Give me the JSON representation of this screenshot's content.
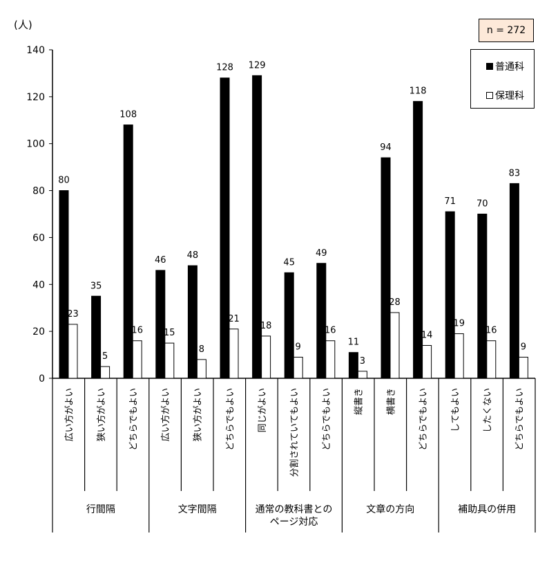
{
  "unit_label": "(人)",
  "n_note": "n = 272",
  "colors": {
    "普通科": "#000000",
    "保理科": "#ffffff"
  },
  "legend": [
    "普通科",
    "保理科"
  ],
  "chart_data": {
    "type": "bar",
    "ylim": [
      0,
      140
    ],
    "yticks": [
      0,
      20,
      40,
      60,
      80,
      100,
      120,
      140
    ],
    "categories": [
      "広い方がよい",
      "狭い方がよい",
      "どちらでもよい",
      "広い方がよい",
      "狭い方がよい",
      "どちらでもよい",
      "同じがよい",
      "分割されていてもよい",
      "どちらでもよい",
      "縦書き",
      "横書き",
      "どちらでもよい",
      "してもよい",
      "したくない",
      "どちらでもよい"
    ],
    "groups": [
      {
        "label": "行間隔",
        "count": 3
      },
      {
        "label": "文字間隔",
        "count": 3
      },
      {
        "label": "通常の教科書との\nページ対応",
        "count": 3
      },
      {
        "label": "文章の方向",
        "count": 3
      },
      {
        "label": "補助具の併用",
        "count": 3
      }
    ],
    "series": [
      {
        "name": "普通科",
        "values": [
          80,
          35,
          108,
          46,
          48,
          128,
          129,
          45,
          49,
          11,
          94,
          118,
          71,
          70,
          83
        ]
      },
      {
        "name": "保理科",
        "values": [
          23,
          5,
          16,
          15,
          8,
          21,
          18,
          9,
          16,
          3,
          28,
          14,
          19,
          16,
          9
        ]
      }
    ],
    "legend_position": "top-right",
    "grid": false
  }
}
